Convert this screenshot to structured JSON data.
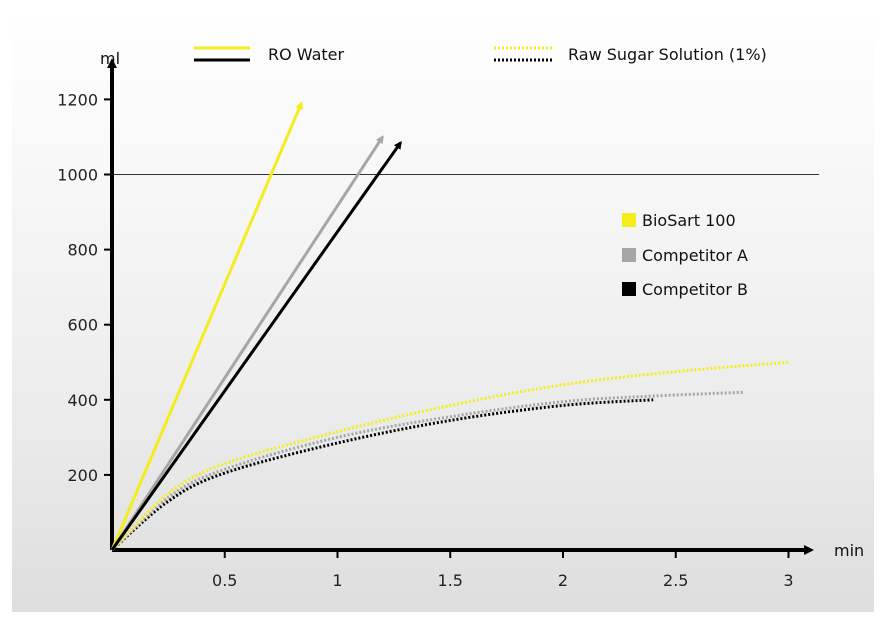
{
  "chart_data": {
    "type": "line",
    "xlabel": "min",
    "ylabel": "ml",
    "xlim": [
      0,
      3.1
    ],
    "ylim": [
      0,
      1270
    ],
    "xticks": [
      "0.5",
      "1",
      "1.5",
      "2",
      "2.5",
      "3"
    ],
    "yticks": [
      "200",
      "400",
      "600",
      "800",
      "1000",
      "1200"
    ],
    "reference_line": 1000,
    "line_styles": {
      "solid": "RO Water",
      "dotted": "Raw Sugar Solution (1%)"
    },
    "legend_products": [
      {
        "name": "BioSart 100",
        "color": "#f5ec1c"
      },
      {
        "name": "Competitor A",
        "color": "#a6a6a6"
      },
      {
        "name": "Competitor B",
        "color": "#000000"
      }
    ],
    "series": [
      {
        "product": "BioSart 100",
        "medium": "RO Water",
        "style": "solid",
        "arrow": true,
        "x": [
          0,
          0.84
        ],
        "y": [
          0,
          1190
        ]
      },
      {
        "product": "Competitor A",
        "medium": "RO Water",
        "style": "solid",
        "arrow": true,
        "x": [
          0,
          1.2
        ],
        "y": [
          0,
          1100
        ]
      },
      {
        "product": "Competitor B",
        "medium": "RO Water",
        "style": "solid",
        "arrow": true,
        "x": [
          0,
          1.28
        ],
        "y": [
          0,
          1085
        ]
      },
      {
        "product": "BioSart 100",
        "medium": "Raw Sugar Solution (1%)",
        "style": "dotted",
        "x": [
          0,
          0.25,
          0.5,
          1.0,
          1.5,
          2.0,
          2.5,
          3.0
        ],
        "y": [
          0,
          150,
          230,
          315,
          385,
          440,
          475,
          500
        ]
      },
      {
        "product": "Competitor A",
        "medium": "Raw Sugar Solution (1%)",
        "style": "dotted",
        "x": [
          0,
          0.25,
          0.5,
          1.0,
          1.5,
          2.0,
          2.4,
          2.8
        ],
        "y": [
          0,
          140,
          215,
          300,
          355,
          395,
          410,
          420
        ]
      },
      {
        "product": "Competitor B",
        "medium": "Raw Sugar Solution (1%)",
        "style": "dotted",
        "x": [
          0,
          0.25,
          0.5,
          1.0,
          1.5,
          2.0,
          2.4
        ],
        "y": [
          0,
          130,
          205,
          285,
          345,
          385,
          400
        ]
      }
    ]
  }
}
